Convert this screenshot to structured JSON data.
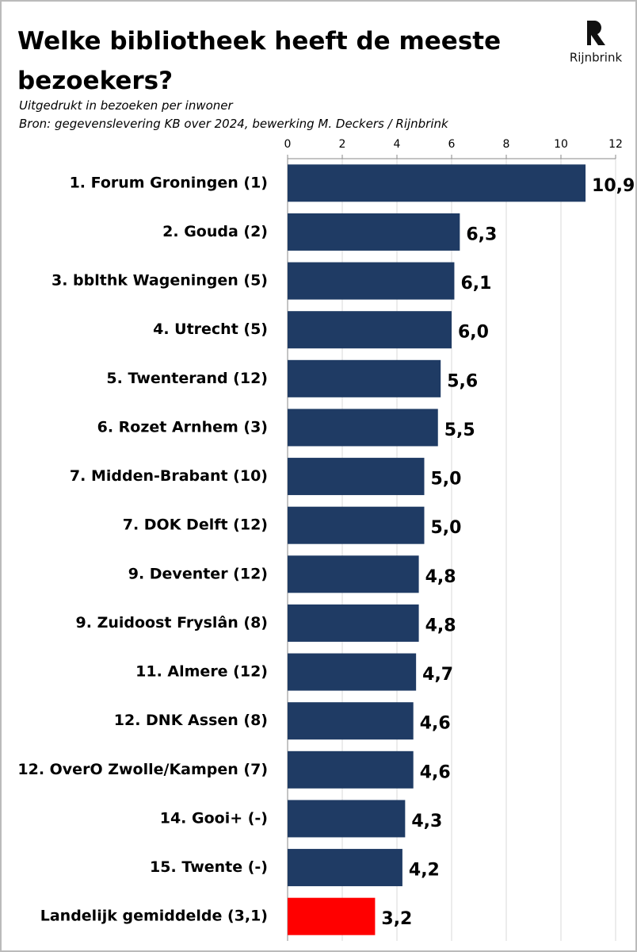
{
  "brand": "Rijnbrink",
  "chart_data": {
    "type": "hbar",
    "title": "Welke bibliotheek heeft de meeste bezoekers?",
    "subtitle": "Uitgedrukt in bezoeken per inwoner",
    "source": "Bron: gegevenslevering KB over 2024, bewerking M. Deckers / Rijnbrink",
    "categories": [
      "1. Forum Groningen (1)",
      "2. Gouda (2)",
      "3. bblthk Wageningen (5)",
      "4. Utrecht (5)",
      "5. Twenterand (12)",
      "6. Rozet Arnhem (3)",
      "7. Midden-Brabant (10)",
      "7. DOK Delft (12)",
      "9. Deventer (12)",
      "9. Zuidoost Fryslân (8)",
      "11. Almere (12)",
      "12. DNK Assen (8)",
      "12. OverO Zwolle/Kampen (7)",
      "14. Gooi+ (-)",
      "15. Twente (-)",
      "Landelijk gemiddelde (3,1)"
    ],
    "values": [
      10.9,
      6.3,
      6.1,
      6.0,
      5.6,
      5.5,
      5.0,
      5.0,
      4.8,
      4.8,
      4.7,
      4.6,
      4.6,
      4.3,
      4.2,
      3.2
    ],
    "value_labels": [
      "10,9",
      "6,3",
      "6,1",
      "6,0",
      "5,6",
      "5,5",
      "5,0",
      "5,0",
      "4,8",
      "4,8",
      "4,7",
      "4,6",
      "4,6",
      "4,3",
      "4,2",
      "3,2"
    ],
    "colors": [
      "#1f3b64",
      "#1f3b64",
      "#1f3b64",
      "#1f3b64",
      "#1f3b64",
      "#1f3b64",
      "#1f3b64",
      "#1f3b64",
      "#1f3b64",
      "#1f3b64",
      "#1f3b64",
      "#1f3b64",
      "#1f3b64",
      "#1f3b64",
      "#1f3b64",
      "#ff0000"
    ],
    "xlim": [
      0,
      12
    ],
    "xticks": [
      0,
      2,
      4,
      6,
      8,
      10,
      12
    ],
    "grid": true
  }
}
